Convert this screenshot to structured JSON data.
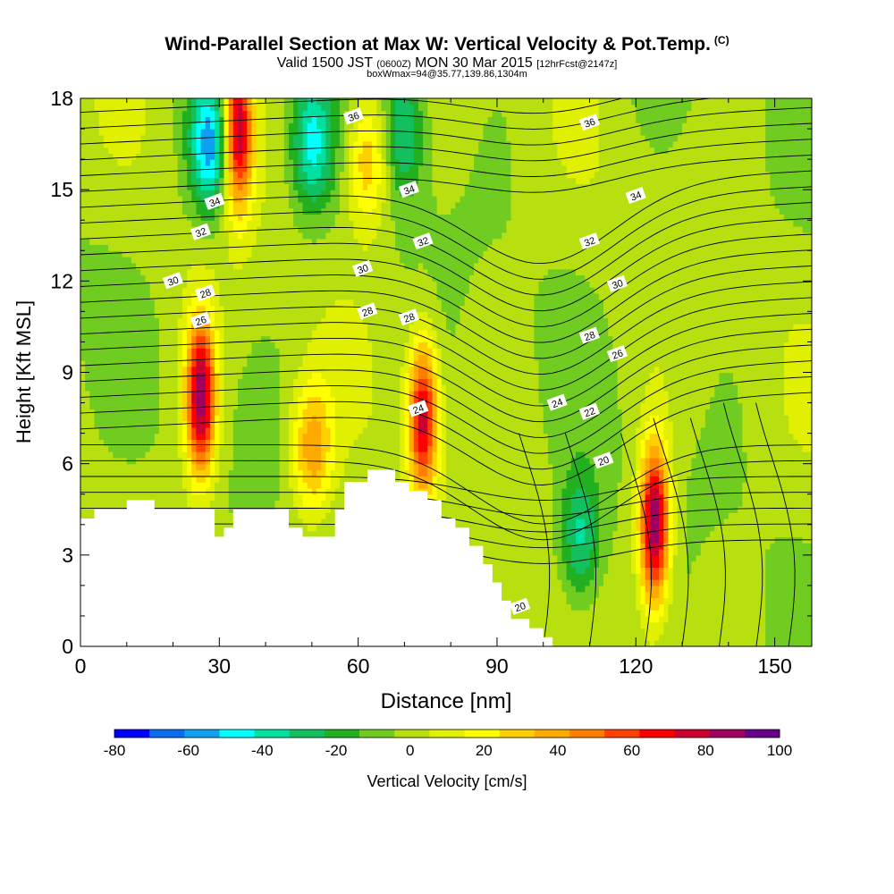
{
  "title": "Wind-Parallel Section at Max W: Vertical Velocity & Pot.Temp.",
  "title_tag": "(C)",
  "subtitle": {
    "valid": "Valid 1500 JST",
    "utc": "(0600Z)",
    "date": "MON 30 Mar 2015",
    "fcst": "[12hrFcst@2147z]"
  },
  "subtitle2": "boxWmax=94@35.77,139.86,1304m",
  "chart_data": {
    "type": "heatmap",
    "xlabel": "Distance [nm]",
    "ylabel": "Height [Kft MSL]",
    "xlim": [
      0,
      158
    ],
    "ylim": [
      0,
      18
    ],
    "xticks": [
      0,
      30,
      60,
      90,
      120,
      150
    ],
    "yticks": [
      0,
      3,
      6,
      9,
      12,
      15,
      18
    ],
    "colorbar": {
      "label": "Vertical Velocity [cm/s]",
      "ticks": [
        -80,
        -60,
        -40,
        -20,
        0,
        20,
        40,
        60,
        80,
        100
      ],
      "range": [
        -80,
        100
      ],
      "step": 10,
      "colors": [
        "#0000ff",
        "#0a6cf0",
        "#0fa0f0",
        "#00ffff",
        "#00e0a0",
        "#12c060",
        "#22b020",
        "#70cc20",
        "#b8e010",
        "#e0f000",
        "#ffff00",
        "#ffd000",
        "#ffaa00",
        "#ff8000",
        "#ff4000",
        "#ff0000",
        "#cc0030",
        "#a00060",
        "#660088"
      ]
    },
    "terrain_top_kft": [
      [
        0,
        4.2
      ],
      [
        3,
        4.2
      ],
      [
        3,
        4.5
      ],
      [
        10,
        4.5
      ],
      [
        10,
        4.8
      ],
      [
        16,
        4.8
      ],
      [
        16,
        4.5
      ],
      [
        29,
        4.5
      ],
      [
        29,
        3.6
      ],
      [
        31,
        3.6
      ],
      [
        31,
        3.9
      ],
      [
        33,
        3.9
      ],
      [
        33,
        4.5
      ],
      [
        45,
        4.5
      ],
      [
        45,
        3.9
      ],
      [
        48,
        3.9
      ],
      [
        48,
        3.6
      ],
      [
        55,
        3.6
      ],
      [
        55,
        4.5
      ],
      [
        57,
        4.5
      ],
      [
        57,
        5.4
      ],
      [
        60,
        5.4
      ],
      [
        60,
        5.4
      ],
      [
        62,
        5.4
      ],
      [
        62,
        5.8
      ],
      [
        68,
        5.8
      ],
      [
        68,
        5.4
      ],
      [
        71,
        5.4
      ],
      [
        71,
        5.1
      ],
      [
        75,
        5.1
      ],
      [
        75,
        4.8
      ],
      [
        78,
        4.8
      ],
      [
        78,
        4.2
      ],
      [
        81,
        4.2
      ],
      [
        81,
        3.9
      ],
      [
        84,
        3.9
      ],
      [
        84,
        3.3
      ],
      [
        87,
        3.3
      ],
      [
        87,
        2.7
      ],
      [
        89,
        2.7
      ],
      [
        89,
        2.1
      ],
      [
        91,
        2.1
      ],
      [
        91,
        1.5
      ],
      [
        93,
        1.5
      ],
      [
        93,
        0.9
      ],
      [
        97,
        0.9
      ],
      [
        97,
        0.6
      ],
      [
        100,
        0.6
      ],
      [
        100,
        0.3
      ],
      [
        102,
        0.3
      ],
      [
        102,
        0
      ]
    ],
    "features": [
      {
        "x": 26,
        "y": 8.2,
        "w": 94,
        "kind": "updraft"
      },
      {
        "x": 34,
        "y": 17.0,
        "w": 90,
        "kind": "updraft"
      },
      {
        "x": 74,
        "y": 7.5,
        "w": 82,
        "kind": "updraft"
      },
      {
        "x": 124,
        "y": 4.0,
        "w": 100,
        "kind": "updraft"
      },
      {
        "x": 50,
        "y": 6.5,
        "w": 45,
        "kind": "updraft"
      },
      {
        "x": 62,
        "y": 16.0,
        "w": 40,
        "kind": "updraft"
      },
      {
        "x": 28,
        "y": 16.5,
        "w": -60,
        "kind": "downdraft"
      },
      {
        "x": 50,
        "y": 16.5,
        "w": -45,
        "kind": "downdraft"
      },
      {
        "x": 70,
        "y": 17.0,
        "w": -35,
        "kind": "downdraft"
      },
      {
        "x": 108,
        "y": 3.5,
        "w": -38,
        "kind": "downdraft"
      }
    ],
    "contour_labels": [
      {
        "text": "36",
        "x": 59,
        "y": 17.4
      },
      {
        "text": "36",
        "x": 110,
        "y": 17.2
      },
      {
        "text": "34",
        "x": 29,
        "y": 14.6
      },
      {
        "text": "34",
        "x": 71,
        "y": 15.0
      },
      {
        "text": "34",
        "x": 120,
        "y": 14.8
      },
      {
        "text": "32",
        "x": 26,
        "y": 13.6
      },
      {
        "text": "32",
        "x": 74,
        "y": 13.3
      },
      {
        "text": "32",
        "x": 110,
        "y": 13.3
      },
      {
        "text": "30",
        "x": 20,
        "y": 12.0
      },
      {
        "text": "30",
        "x": 61,
        "y": 12.4
      },
      {
        "text": "30",
        "x": 116,
        "y": 11.9
      },
      {
        "text": "28",
        "x": 27,
        "y": 11.6
      },
      {
        "text": "28",
        "x": 62,
        "y": 11.0
      },
      {
        "text": "28",
        "x": 71,
        "y": 10.8
      },
      {
        "text": "28",
        "x": 110,
        "y": 10.2
      },
      {
        "text": "26",
        "x": 26,
        "y": 10.7
      },
      {
        "text": "26",
        "x": 116,
        "y": 9.6
      },
      {
        "text": "24",
        "x": 73,
        "y": 7.8
      },
      {
        "text": "24",
        "x": 103,
        "y": 8.0
      },
      {
        "text": "22",
        "x": 110,
        "y": 7.7
      },
      {
        "text": "20",
        "x": 113,
        "y": 6.1
      },
      {
        "text": "20",
        "x": 95,
        "y": 1.3
      }
    ]
  }
}
